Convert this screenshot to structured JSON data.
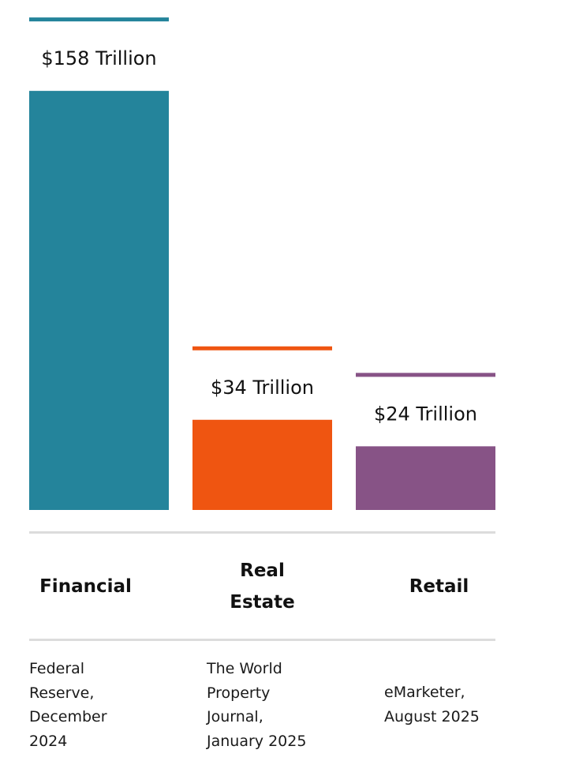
{
  "chart_data": {
    "type": "bar",
    "categories": [
      "Financial",
      "Real Estate",
      "Retail"
    ],
    "category_lines": [
      [
        "Financial"
      ],
      [
        "Real",
        "Estate"
      ],
      [
        "Retail"
      ]
    ],
    "values": [
      158,
      34,
      24
    ],
    "value_labels": [
      "$158 Trillion",
      "$34 Trillion",
      "$24 Trillion"
    ],
    "colors": [
      "#24849b",
      "#ef5511",
      "#875386"
    ],
    "sources": [
      [
        "Federal",
        "Reserve,",
        "December",
        "2024"
      ],
      [
        "The World",
        "Property",
        "Journal,",
        "January 2025"
      ],
      [
        "eMarketer,",
        "August 2025"
      ]
    ],
    "title": "",
    "xlabel": "",
    "ylabel": "",
    "grid": false,
    "legend": "none"
  }
}
